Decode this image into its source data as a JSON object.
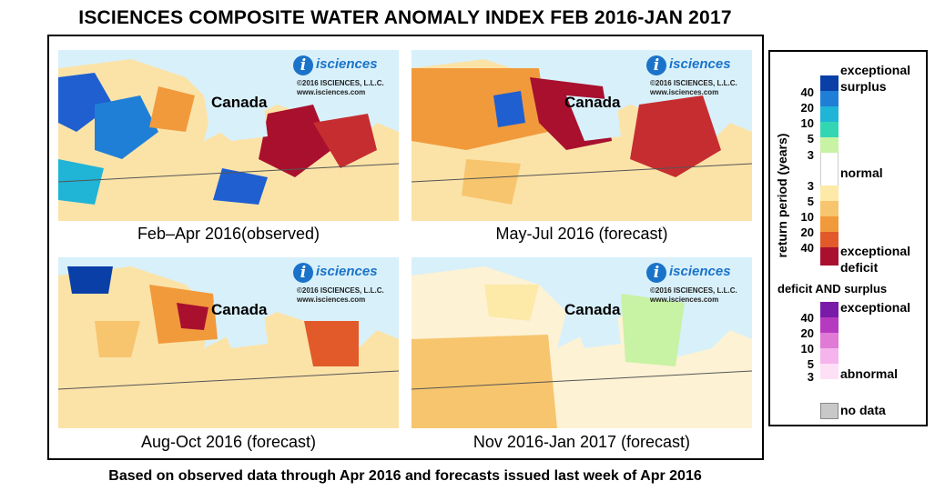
{
  "title": "ISCIENCES COMPOSITE WATER ANOMALY INDEX FEB 2016-JAN 2017",
  "footer": "Based on observed data through Apr 2016 and forecasts issued last week of Apr 2016",
  "logo": {
    "brand": "isciences",
    "copyright": "©2016 ISCIENCES, L.L.C.",
    "url": "www.isciences.com"
  },
  "map_label": "Canada",
  "panels": [
    {
      "caption": "Feb–Apr 2016(observed)"
    },
    {
      "caption": "May-Jul 2016 (forecast)"
    },
    {
      "caption": "Aug-Oct 2016 (forecast)"
    },
    {
      "caption": "Nov 2016-Jan 2017 (forecast)"
    }
  ],
  "legend": {
    "axis_label": "return period (years)",
    "surplus": {
      "label_line1": "exceptional",
      "label_line2": "surplus",
      "ticks": [
        "40",
        "20",
        "10",
        "5",
        "3"
      ],
      "colors": [
        "#0a3fa8",
        "#1f7fd6",
        "#20b4d6",
        "#33d6b3",
        "#c8f2a4"
      ]
    },
    "normal": {
      "label": "normal",
      "color": "#ffffff"
    },
    "deficit": {
      "label_line1": "exceptional",
      "label_line2": "deficit",
      "ticks": [
        "3",
        "5",
        "10",
        "20",
        "40"
      ],
      "colors": [
        "#fde9a8",
        "#f7c56e",
        "#f19a3c",
        "#e25a2a",
        "#a8102e"
      ]
    },
    "both": {
      "title": "deficit AND surplus",
      "label_top": "exceptional",
      "label_bottom": "abnormal",
      "ticks": [
        "40",
        "20",
        "10",
        "5",
        "3"
      ],
      "colors": [
        "#7a1aa8",
        "#b63ac0",
        "#e07ad6",
        "#f5b4ec",
        "#fde0f6"
      ]
    },
    "nodata": {
      "label": "no data",
      "color": "#c8c8c8"
    }
  }
}
